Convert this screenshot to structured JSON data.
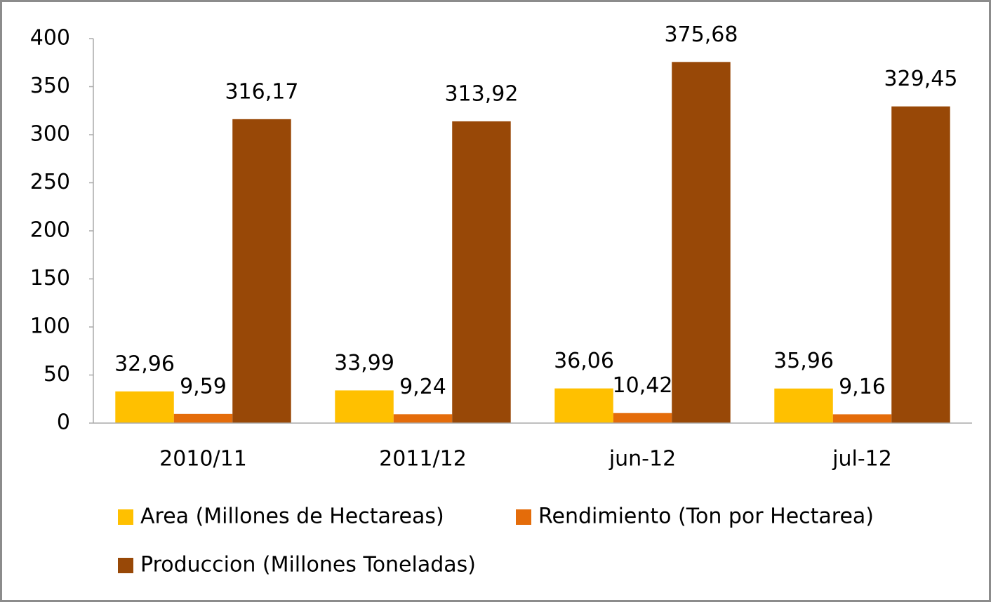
{
  "chart_data": {
    "type": "bar",
    "categories": [
      "2010/11",
      "2011/12",
      "jun-12",
      "jul-12"
    ],
    "series": [
      {
        "name": "Area (Millones de Hectareas)",
        "color": "#ffc000",
        "values": [
          32.96,
          33.99,
          36.06,
          35.96
        ],
        "value_labels": [
          "32,96",
          "33,99",
          "36,06",
          "35,96"
        ]
      },
      {
        "name": "Rendimiento (Ton por Hectarea)",
        "color": "#e46c0a",
        "values": [
          9.59,
          9.24,
          10.42,
          9.16
        ],
        "value_labels": [
          "9,59",
          "9,24",
          "10,42",
          "9,16"
        ]
      },
      {
        "name": "Produccion (Millones Toneladas)",
        "color": "#984807",
        "values": [
          316.17,
          313.92,
          375.68,
          329.45
        ],
        "value_labels": [
          "316,17",
          "313,92",
          "375,68",
          "329,45"
        ]
      }
    ],
    "ylim": [
      0,
      400
    ],
    "yticks": [
      0,
      50,
      100,
      150,
      200,
      250,
      300,
      350,
      400
    ],
    "grid": false,
    "legend": "bottom"
  }
}
